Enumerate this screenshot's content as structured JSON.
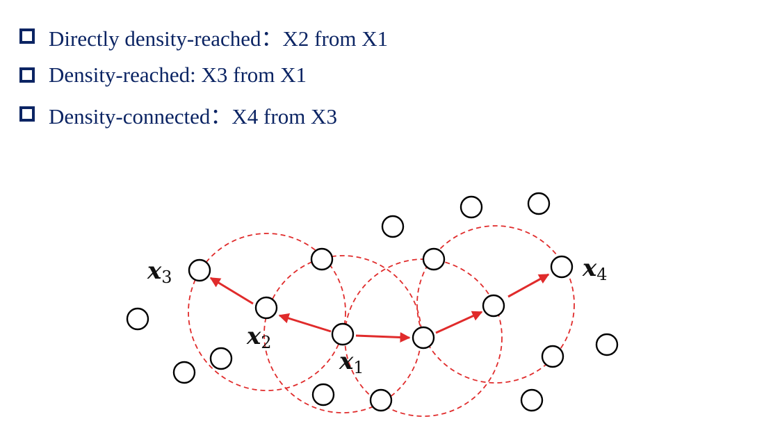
{
  "bullets": [
    {
      "text": "Directly density-reached：X2 from X1"
    },
    {
      "text": "Density-reached: X3 from X1"
    },
    {
      "text": "Density-connected：X4 from X3"
    }
  ],
  "diagram": {
    "labels": {
      "x1": {
        "var": "x",
        "sub": "1"
      },
      "x2": {
        "var": "x",
        "sub": "2"
      },
      "x3": {
        "var": "x",
        "sub": "3"
      },
      "x4": {
        "var": "x",
        "sub": "4"
      }
    },
    "colors": {
      "neighborhood": "#e02b2b",
      "arrow": "#e02b2b",
      "node": "#000000",
      "bullet_text": "#0b2463"
    }
  }
}
